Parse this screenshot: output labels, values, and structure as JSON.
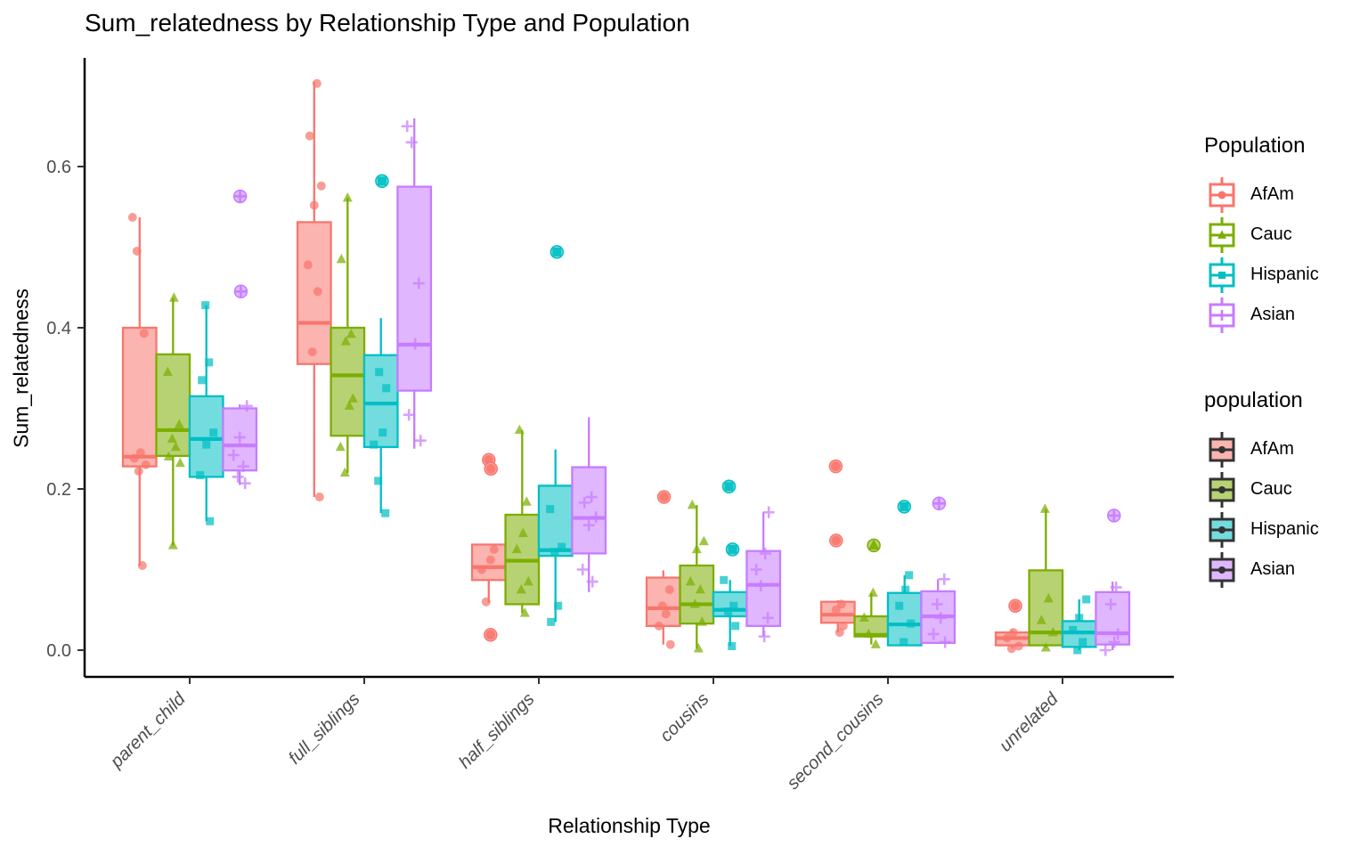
{
  "chart_data": {
    "type": "grouped_boxplot_with_jitter",
    "title": "Sum_relatedness by Relationship Type and Population",
    "xlabel": "Relationship Type",
    "ylabel": "Sum_relatedness",
    "ylim": [
      0,
      0.72
    ],
    "yticks": [
      0.0,
      0.2,
      0.4,
      0.6
    ],
    "ytick_labels": [
      "0.0",
      "0.2",
      "0.4",
      "0.6"
    ],
    "grid": "off",
    "categories": [
      "parent_child",
      "full_siblings",
      "half_siblings",
      "cousins",
      "second_cousins",
      "unrelated"
    ],
    "populations": [
      {
        "name": "AfAm",
        "color": "#F8766D",
        "fill": "#FBB4AF",
        "shape": "circle"
      },
      {
        "name": "Cauc",
        "color": "#7CAE00",
        "fill": "#B7D273",
        "shape": "triangle"
      },
      {
        "name": "Hispanic",
        "color": "#00BFC4",
        "fill": "#73DCDF",
        "shape": "square"
      },
      {
        "name": "Asian",
        "color": "#C77CFF",
        "fill": "#E0B7FF",
        "shape": "plus"
      }
    ],
    "groups": [
      {
        "category": "parent_child",
        "boxes": [
          {
            "population": "AfAm",
            "lo": 0.105,
            "q1": 0.228,
            "med": 0.24,
            "q3": 0.4,
            "hi": 0.537,
            "points": [
              0.537,
              0.495,
              0.393,
              0.245,
              0.238,
              0.23,
              0.222,
              0.105
            ],
            "outliers": []
          },
          {
            "population": "Cauc",
            "lo": 0.13,
            "q1": 0.241,
            "med": 0.273,
            "q3": 0.367,
            "hi": 0.437,
            "points": [
              0.437,
              0.345,
              0.28,
              0.262,
              0.252,
              0.24,
              0.232,
              0.13
            ],
            "outliers": []
          },
          {
            "population": "Hispanic",
            "lo": 0.16,
            "q1": 0.215,
            "med": 0.262,
            "q3": 0.315,
            "hi": 0.428,
            "points": [
              0.428,
              0.357,
              0.335,
              0.27,
              0.255,
              0.217,
              0.16
            ],
            "outliers": []
          },
          {
            "population": "Asian",
            "lo": 0.205,
            "q1": 0.223,
            "med": 0.254,
            "q3": 0.3,
            "hi": 0.305,
            "points": [
              0.303,
              0.264,
              0.242,
              0.228,
              0.215,
              0.207
            ],
            "outliers": [
              0.563,
              0.445
            ]
          }
        ]
      },
      {
        "category": "full_siblings",
        "boxes": [
          {
            "population": "AfAm",
            "lo": 0.19,
            "q1": 0.355,
            "med": 0.406,
            "q3": 0.531,
            "hi": 0.705,
            "points": [
              0.703,
              0.638,
              0.576,
              0.552,
              0.478,
              0.445,
              0.37,
              0.19
            ],
            "outliers": []
          },
          {
            "population": "Cauc",
            "lo": 0.22,
            "q1": 0.266,
            "med": 0.341,
            "q3": 0.4,
            "hi": 0.561,
            "points": [
              0.561,
              0.485,
              0.392,
              0.383,
              0.312,
              0.303,
              0.252,
              0.22
            ],
            "outliers": []
          },
          {
            "population": "Hispanic",
            "lo": 0.17,
            "q1": 0.252,
            "med": 0.306,
            "q3": 0.366,
            "hi": 0.412,
            "points": [
              0.345,
              0.325,
              0.27,
              0.255,
              0.21,
              0.17
            ],
            "outliers": [
              0.582
            ]
          },
          {
            "population": "Asian",
            "lo": 0.25,
            "q1": 0.322,
            "med": 0.379,
            "q3": 0.575,
            "hi": 0.66,
            "points": [
              0.65,
              0.63,
              0.455,
              0.38,
              0.292,
              0.26
            ],
            "outliers": []
          }
        ]
      },
      {
        "category": "half_siblings",
        "boxes": [
          {
            "population": "AfAm",
            "lo": 0.059,
            "q1": 0.087,
            "med": 0.103,
            "q3": 0.131,
            "hi": 0.132,
            "points": [
              0.125,
              0.112,
              0.1,
              0.06
            ],
            "outliers": [
              0.236,
              0.225,
              0.019
            ]
          },
          {
            "population": "Cauc",
            "lo": 0.046,
            "q1": 0.057,
            "med": 0.111,
            "q3": 0.168,
            "hi": 0.273,
            "points": [
              0.273,
              0.184,
              0.145,
              0.125,
              0.085,
              0.075,
              0.046
            ],
            "outliers": []
          },
          {
            "population": "Hispanic",
            "lo": 0.035,
            "q1": 0.117,
            "med": 0.124,
            "q3": 0.204,
            "hi": 0.249,
            "points": [
              0.175,
              0.128,
              0.122,
              0.055,
              0.035
            ],
            "outliers": [
              0.494
            ]
          },
          {
            "population": "Asian",
            "lo": 0.072,
            "q1": 0.12,
            "med": 0.164,
            "q3": 0.227,
            "hi": 0.289,
            "points": [
              0.19,
              0.183,
              0.165,
              0.155,
              0.1,
              0.085
            ],
            "outliers": []
          }
        ]
      },
      {
        "category": "cousins",
        "boxes": [
          {
            "population": "AfAm",
            "lo": 0.007,
            "q1": 0.03,
            "med": 0.052,
            "q3": 0.09,
            "hi": 0.099,
            "points": [
              0.075,
              0.055,
              0.045,
              0.03,
              0.007
            ],
            "outliers": [
              0.19
            ]
          },
          {
            "population": "Cauc",
            "lo": 0.002,
            "q1": 0.033,
            "med": 0.057,
            "q3": 0.105,
            "hi": 0.18,
            "points": [
              0.18,
              0.135,
              0.125,
              0.085,
              0.075,
              0.057,
              0.035,
              0.002
            ],
            "outliers": []
          },
          {
            "population": "Hispanic",
            "lo": 0.005,
            "q1": 0.042,
            "med": 0.05,
            "q3": 0.072,
            "hi": 0.087,
            "points": [
              0.087,
              0.055,
              0.048,
              0.03,
              0.005
            ],
            "outliers": [
              0.203,
              0.125
            ]
          },
          {
            "population": "Asian",
            "lo": 0.017,
            "q1": 0.03,
            "med": 0.081,
            "q3": 0.123,
            "hi": 0.171,
            "points": [
              0.171,
              0.12,
              0.1,
              0.08,
              0.04,
              0.017
            ],
            "outliers": []
          }
        ]
      },
      {
        "category": "second_cousins",
        "boxes": [
          {
            "population": "AfAm",
            "lo": 0.022,
            "q1": 0.034,
            "med": 0.044,
            "q3": 0.06,
            "hi": 0.062,
            "points": [
              0.057,
              0.05,
              0.03,
              0.022
            ],
            "outliers": [
              0.228,
              0.136
            ]
          },
          {
            "population": "Cauc",
            "lo": 0.007,
            "q1": 0.017,
            "med": 0.019,
            "q3": 0.042,
            "hi": 0.071,
            "points": [
              0.071,
              0.04,
              0.02,
              0.007
            ],
            "outliers": [
              0.13
            ]
          },
          {
            "population": "Hispanic",
            "lo": 0.006,
            "q1": 0.006,
            "med": 0.032,
            "q3": 0.071,
            "hi": 0.093,
            "points": [
              0.093,
              0.075,
              0.055,
              0.033,
              0.01
            ],
            "outliers": [
              0.178
            ]
          },
          {
            "population": "Asian",
            "lo": 0.009,
            "q1": 0.009,
            "med": 0.042,
            "q3": 0.073,
            "hi": 0.088,
            "points": [
              0.088,
              0.057,
              0.04,
              0.02,
              0.01
            ],
            "outliers": [
              0.182
            ]
          }
        ]
      },
      {
        "category": "unrelated",
        "boxes": [
          {
            "population": "AfAm",
            "lo": 0.002,
            "q1": 0.006,
            "med": 0.015,
            "q3": 0.022,
            "hi": 0.025,
            "points": [
              0.022,
              0.015,
              0.005,
              0.002
            ],
            "outliers": [
              0.055
            ]
          },
          {
            "population": "Cauc",
            "lo": 0.003,
            "q1": 0.006,
            "med": 0.022,
            "q3": 0.099,
            "hi": 0.175,
            "points": [
              0.175,
              0.064,
              0.037,
              0.022,
              0.003
            ],
            "outliers": []
          },
          {
            "population": "Hispanic",
            "lo": 0.0,
            "q1": 0.004,
            "med": 0.022,
            "q3": 0.036,
            "hi": 0.063,
            "points": [
              0.063,
              0.04,
              0.025,
              0.01,
              0.0
            ],
            "outliers": []
          },
          {
            "population": "Asian",
            "lo": 0.0,
            "q1": 0.007,
            "med": 0.021,
            "q3": 0.072,
            "hi": 0.085,
            "points": [
              0.078,
              0.057,
              0.02,
              0.01,
              0.0
            ],
            "outliers": [
              0.167
            ]
          }
        ]
      }
    ],
    "legend_shape": {
      "title": "Population",
      "labels": [
        "AfAm",
        "Cauc",
        "Hispanic",
        "Asian"
      ]
    },
    "legend_fill": {
      "title": "population",
      "labels": [
        "AfAm",
        "Cauc",
        "Hispanic",
        "Asian"
      ]
    },
    "legend_position": "right"
  }
}
